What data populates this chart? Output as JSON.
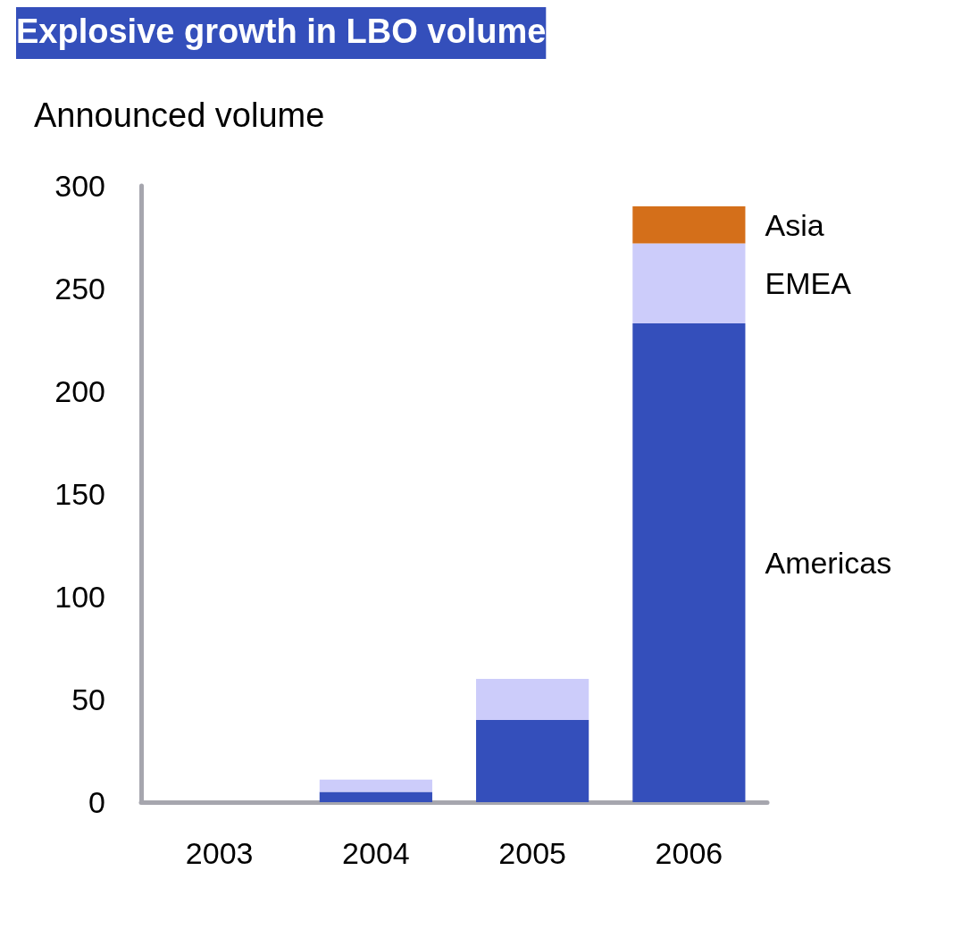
{
  "chart_data": {
    "type": "bar",
    "title": "Explosive growth in LBO volume",
    "ylabel": "Announced volume",
    "categories": [
      "2003",
      "2004",
      "2005",
      "2006"
    ],
    "stacked": true,
    "ylim": [
      0,
      300
    ],
    "yticks": [
      0,
      50,
      100,
      150,
      200,
      250,
      300
    ],
    "grid": false,
    "legend": false,
    "series": [
      {
        "name": "Americas",
        "color": "#344fbb",
        "values": [
          0,
          5,
          40,
          233
        ]
      },
      {
        "name": "EMEA",
        "color": "#ccccfa",
        "values": [
          0,
          6,
          20,
          39
        ]
      },
      {
        "name": "Asia",
        "color": "#d46f1a",
        "values": [
          0,
          0,
          0,
          18
        ]
      }
    ]
  }
}
